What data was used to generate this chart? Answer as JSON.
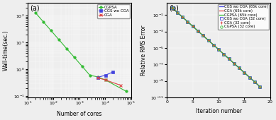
{
  "subplot_a": {
    "title": "(a)",
    "xlabel": "Number of cores",
    "ylabel": "Wall-time(sec.)",
    "legend": [
      "CGS wo CGA",
      "CGA",
      "CGPSA"
    ],
    "colors": [
      "#4444dd",
      "#dd4444",
      "#33bb33"
    ],
    "markers": [
      "s",
      "x",
      "o"
    ],
    "cgs_cores": [
      5120,
      10240,
      20480
    ],
    "cgs_vals": [
      0.5,
      0.6,
      0.8
    ],
    "cga_cores": [
      5120,
      10240,
      40960
    ],
    "cga_vals": [
      0.48,
      0.4,
      0.25
    ],
    "cgpsa_cores": [
      20,
      40,
      80,
      160,
      320,
      640,
      1280,
      2560,
      5120,
      10240,
      65536
    ],
    "cgpsa_vals": [
      130,
      60,
      28,
      13,
      6.0,
      2.8,
      1.3,
      0.6,
      0.52,
      0.4,
      0.15
    ],
    "xlim": [
      10,
      100000
    ],
    "ylim": [
      0.09,
      300
    ]
  },
  "subplot_b": {
    "title": "(b)",
    "xlabel": "Iteration number",
    "ylabel": "Relative RMS Error",
    "iters_line": [
      1,
      2,
      3,
      4,
      5,
      6,
      7,
      8,
      9,
      10,
      11,
      12,
      13,
      14,
      15,
      16,
      17,
      18
    ],
    "iters_dot": [
      1,
      2,
      3,
      4,
      5,
      6,
      7,
      8,
      9,
      10,
      11,
      12,
      13,
      14,
      15,
      16,
      17,
      18
    ],
    "start_val": 0.78,
    "decay_rate": 1.3,
    "legend_lines": [
      "CGS wo CGA (65k core)",
      "CGA (65k core)",
      "CGPSA (65k core)"
    ],
    "legend_dots": [
      "CGS wo CGA (32 core)",
      "CGA (32 core)",
      "CGPSA (32 core)"
    ],
    "colors": [
      "#4444dd",
      "#dd4444",
      "#33bb33"
    ],
    "dot_markers": [
      "s",
      "+",
      "o"
    ],
    "xlim": [
      0,
      20
    ],
    "ylim": [
      1e-11,
      3
    ]
  },
  "bg_color": "#eeeeee"
}
